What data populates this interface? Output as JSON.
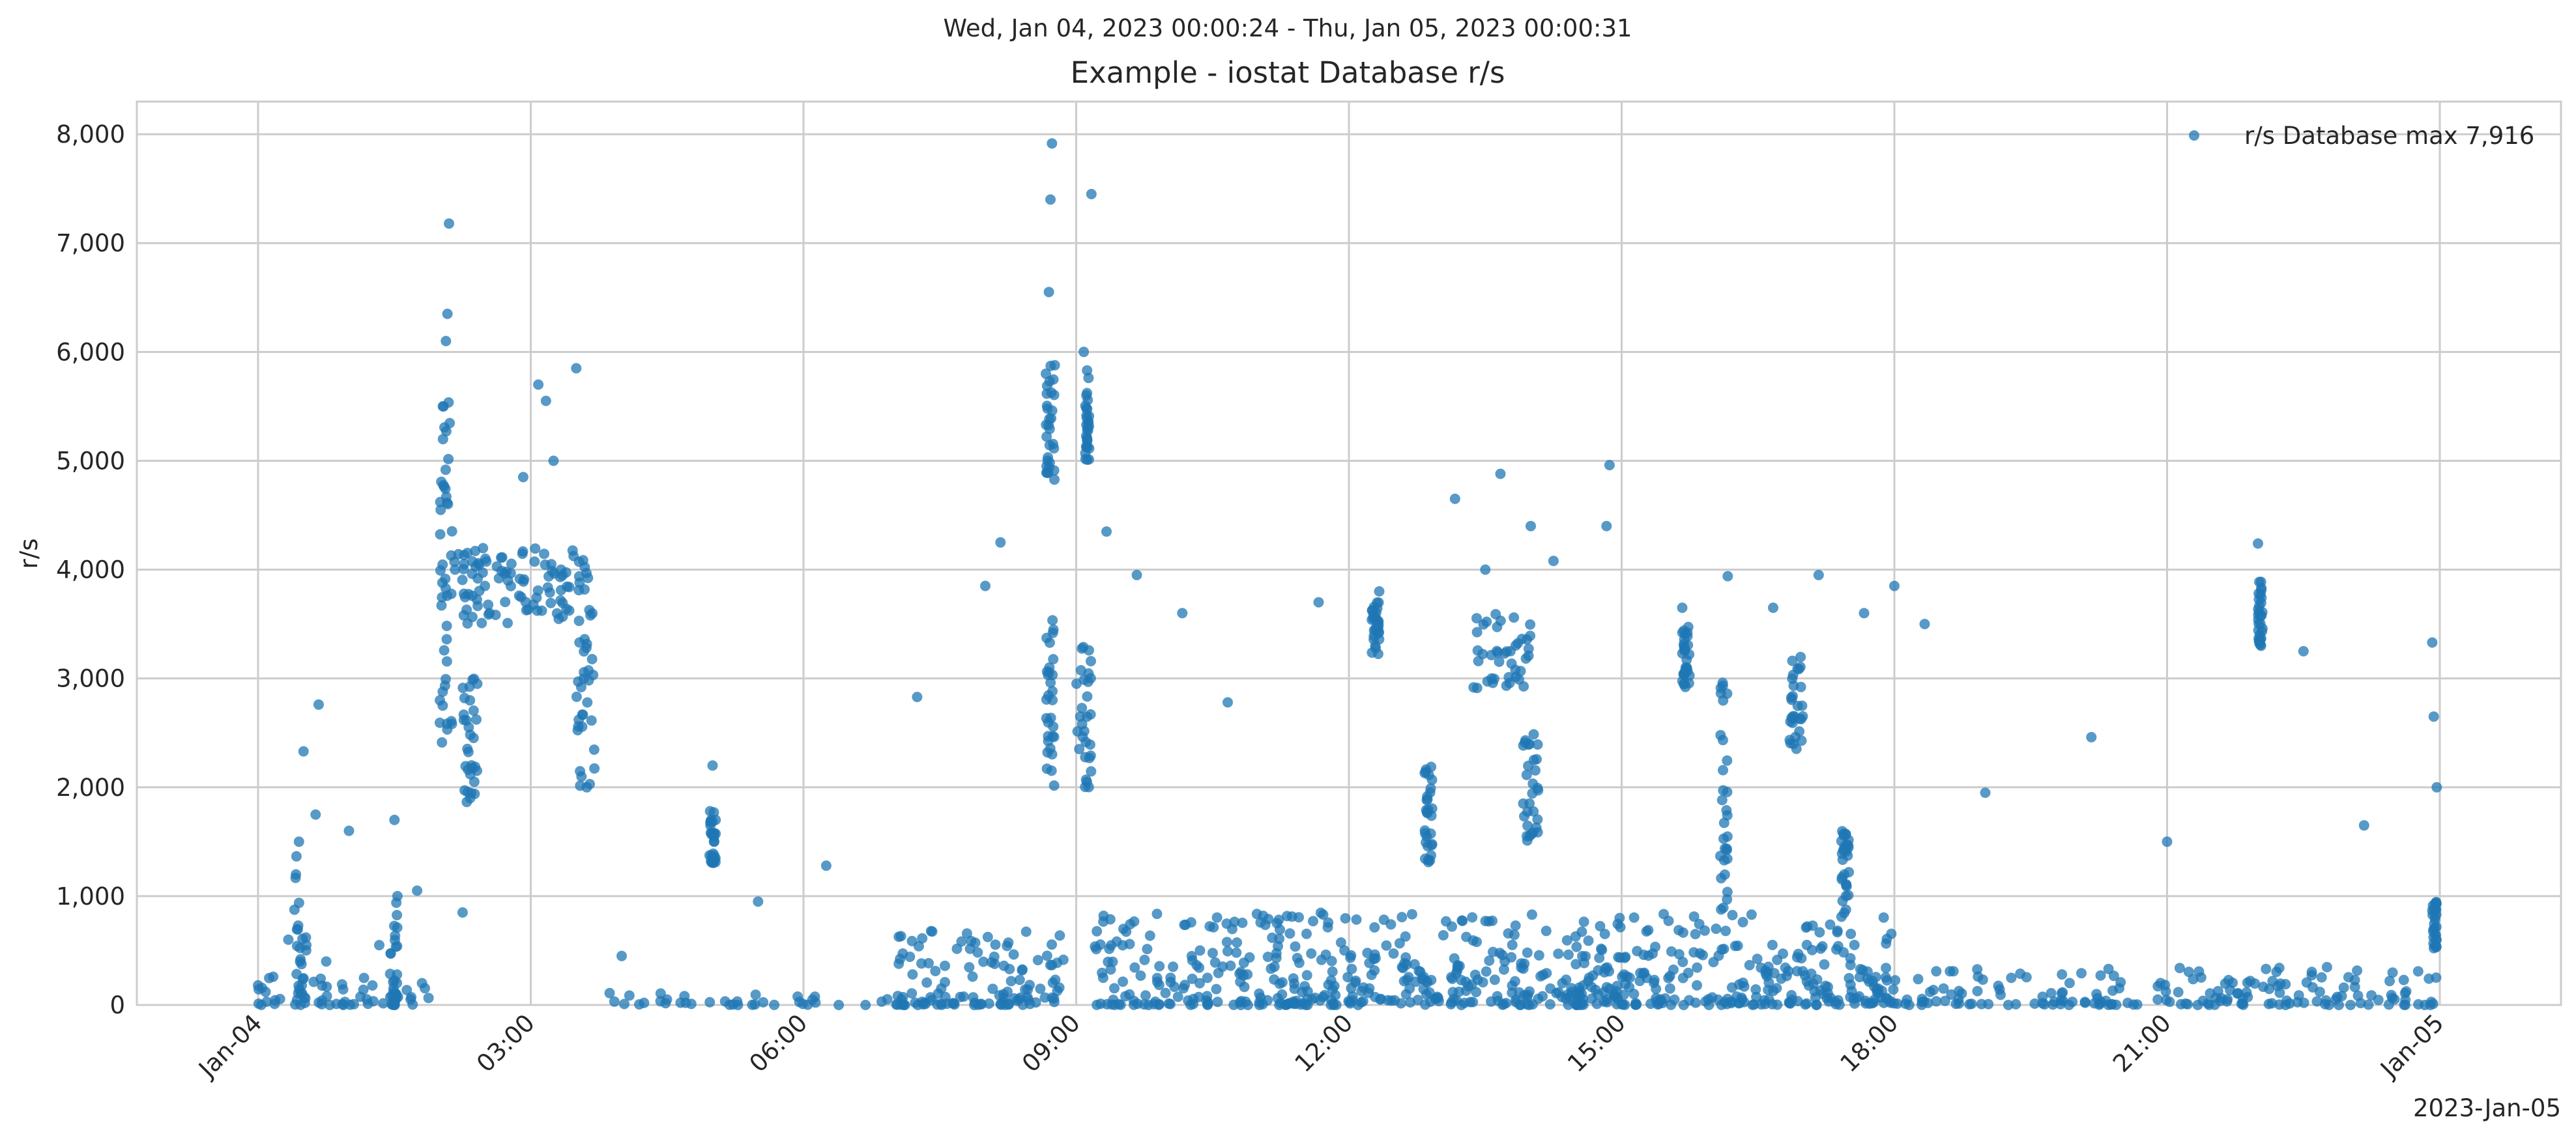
{
  "chart_data": {
    "type": "scatter",
    "suptitle": "Wed, Jan 04, 2023 00:00:24 - Thu, Jan 05, 2023 00:00:31",
    "title": "Example - iostat Database r/s",
    "xlabel": "",
    "ylabel": "r/s",
    "x_offset_label": "2023-Jan-05",
    "xlim": [
      "2023-01-03T22:40",
      "2023-01-05T01:20"
    ],
    "ylim": [
      0,
      8300
    ],
    "xticks": [
      {
        "value": "2023-01-04T00:00",
        "label": "Jan-04"
      },
      {
        "value": "2023-01-04T03:00",
        "label": "03:00"
      },
      {
        "value": "2023-01-04T06:00",
        "label": "06:00"
      },
      {
        "value": "2023-01-04T09:00",
        "label": "09:00"
      },
      {
        "value": "2023-01-04T12:00",
        "label": "12:00"
      },
      {
        "value": "2023-01-04T15:00",
        "label": "15:00"
      },
      {
        "value": "2023-01-04T18:00",
        "label": "18:00"
      },
      {
        "value": "2023-01-04T21:00",
        "label": "21:00"
      },
      {
        "value": "2023-01-05T00:00",
        "label": "Jan-05"
      }
    ],
    "yticks": [
      {
        "value": 0,
        "label": "0"
      },
      {
        "value": 1000,
        "label": "1,000"
      },
      {
        "value": 2000,
        "label": "2,000"
      },
      {
        "value": 3000,
        "label": "3,000"
      },
      {
        "value": 4000,
        "label": "4,000"
      },
      {
        "value": 5000,
        "label": "5,000"
      },
      {
        "value": 6000,
        "label": "6,000"
      },
      {
        "value": 7000,
        "label": "7,000"
      },
      {
        "value": 8000,
        "label": "8,000"
      }
    ],
    "grid": true,
    "legend_position": "top-right",
    "series": [
      {
        "name": "r/s Database max 7,916",
        "color": "#1f77b4",
        "marker": "circle",
        "max": 7916,
        "points": [
          [
            "2023-01-04T00:00",
            180
          ],
          [
            "2023-01-04T00:05",
            120
          ],
          [
            "2023-01-04T00:10",
            260
          ],
          [
            "2023-01-04T00:20",
            600
          ],
          [
            "2023-01-04T00:25",
            1200
          ],
          [
            "2023-01-04T00:27",
            1500
          ],
          [
            "2023-01-04T00:30",
            2330
          ],
          [
            "2023-01-04T00:38",
            1750
          ],
          [
            "2023-01-04T00:40",
            2760
          ],
          [
            "2023-01-04T00:45",
            400
          ],
          [
            "2023-01-04T01:00",
            1600
          ],
          [
            "2023-01-04T01:20",
            550
          ],
          [
            "2023-01-04T01:30",
            1700
          ],
          [
            "2023-01-04T01:32",
            1000
          ],
          [
            "2023-01-04T01:45",
            1050
          ],
          [
            "2023-01-04T02:00",
            2800
          ],
          [
            "2023-01-04T02:02",
            5500
          ],
          [
            "2023-01-04T02:04",
            6100
          ],
          [
            "2023-01-04T02:05",
            6350
          ],
          [
            "2023-01-04T02:06",
            7180
          ],
          [
            "2023-01-04T02:10",
            4000
          ],
          [
            "2023-01-04T02:15",
            850
          ],
          [
            "2023-01-04T02:20",
            1900
          ],
          [
            "2023-01-04T02:30",
            4100
          ],
          [
            "2023-01-04T02:45",
            3900
          ],
          [
            "2023-01-04T02:55",
            4850
          ],
          [
            "2023-01-04T03:05",
            5700
          ],
          [
            "2023-01-04T03:10",
            5550
          ],
          [
            "2023-01-04T03:15",
            5000
          ],
          [
            "2023-01-04T03:20",
            4000
          ],
          [
            "2023-01-04T03:30",
            5850
          ],
          [
            "2023-01-04T03:35",
            3000
          ],
          [
            "2023-01-04T03:37",
            2000
          ],
          [
            "2023-01-04T04:00",
            450
          ],
          [
            "2023-01-04T05:00",
            2200
          ],
          [
            "2023-01-04T05:02",
            1700
          ],
          [
            "2023-01-04T05:30",
            950
          ],
          [
            "2023-01-04T06:15",
            1280
          ],
          [
            "2023-01-04T07:15",
            2830
          ],
          [
            "2023-01-04T08:00",
            3850
          ],
          [
            "2023-01-04T08:10",
            4250
          ],
          [
            "2023-01-04T08:40",
            5800
          ],
          [
            "2023-01-04T08:42",
            6550
          ],
          [
            "2023-01-04T08:43",
            7400
          ],
          [
            "2023-01-04T08:44",
            7916
          ],
          [
            "2023-01-04T09:10",
            7450
          ],
          [
            "2023-01-04T09:05",
            6000
          ],
          [
            "2023-01-04T09:20",
            4350
          ],
          [
            "2023-01-04T09:40",
            3950
          ],
          [
            "2023-01-04T10:10",
            3600
          ],
          [
            "2023-01-04T10:40",
            2780
          ],
          [
            "2023-01-04T11:40",
            3700
          ],
          [
            "2023-01-04T12:20",
            3800
          ],
          [
            "2023-01-04T13:10",
            4650
          ],
          [
            "2023-01-04T13:30",
            4000
          ],
          [
            "2023-01-04T13:40",
            4880
          ],
          [
            "2023-01-04T14:00",
            4400
          ],
          [
            "2023-01-04T14:15",
            4080
          ],
          [
            "2023-01-04T14:50",
            4400
          ],
          [
            "2023-01-04T14:52",
            4960
          ],
          [
            "2023-01-04T15:40",
            3650
          ],
          [
            "2023-01-04T16:10",
            3940
          ],
          [
            "2023-01-04T16:40",
            3650
          ],
          [
            "2023-01-04T17:10",
            3950
          ],
          [
            "2023-01-04T17:40",
            3600
          ],
          [
            "2023-01-04T18:00",
            3850
          ],
          [
            "2023-01-04T18:20",
            3500
          ],
          [
            "2023-01-04T19:00",
            1950
          ],
          [
            "2023-01-04T20:10",
            2460
          ],
          [
            "2023-01-04T21:00",
            1500
          ],
          [
            "2023-01-04T22:00",
            4240
          ],
          [
            "2023-01-04T22:02",
            3300
          ],
          [
            "2023-01-04T22:30",
            3250
          ],
          [
            "2023-01-04T23:10",
            1650
          ],
          [
            "2023-01-04T23:55",
            3330
          ],
          [
            "2023-01-04T23:56",
            2650
          ],
          [
            "2023-01-04T23:58",
            2000
          ]
        ],
        "dense_bands": [
          {
            "from": "2023-01-04T00:00",
            "to": "2023-01-04T02:00",
            "low": 0,
            "high": 250
          },
          {
            "from": "2023-01-04T00:24",
            "to": "2023-01-04T00:32",
            "low": 0,
            "high": 1450
          },
          {
            "from": "2023-01-04T01:27",
            "to": "2023-01-04T01:33",
            "low": 0,
            "high": 1000
          },
          {
            "from": "2023-01-04T02:00",
            "to": "2023-01-04T02:08",
            "low": 2300,
            "high": 5700
          },
          {
            "from": "2023-01-04T02:05",
            "to": "2023-01-04T03:40",
            "low": 3500,
            "high": 4200
          },
          {
            "from": "2023-01-04T02:15",
            "to": "2023-01-04T02:25",
            "low": 1850,
            "high": 3000
          },
          {
            "from": "2023-01-04T03:30",
            "to": "2023-01-04T03:42",
            "low": 2000,
            "high": 3600
          },
          {
            "from": "2023-01-04T03:42",
            "to": "2023-01-04T07:00",
            "low": 0,
            "high": 120
          },
          {
            "from": "2023-01-04T04:58",
            "to": "2023-01-04T05:02",
            "low": 1300,
            "high": 1850
          },
          {
            "from": "2023-01-04T07:00",
            "to": "2023-01-04T08:55",
            "low": 0,
            "high": 700
          },
          {
            "from": "2023-01-04T08:40",
            "to": "2023-01-04T08:46",
            "low": 4800,
            "high": 5900
          },
          {
            "from": "2023-01-04T08:40",
            "to": "2023-01-04T08:46",
            "low": 2000,
            "high": 3600
          },
          {
            "from": "2023-01-04T09:00",
            "to": "2023-01-04T09:10",
            "low": 2000,
            "high": 3300
          },
          {
            "from": "2023-01-04T09:06",
            "to": "2023-01-04T09:08",
            "low": 5000,
            "high": 5900
          },
          {
            "from": "2023-01-04T09:12",
            "to": "2023-01-04T18:00",
            "low": 0,
            "high": 850
          },
          {
            "from": "2023-01-04T12:15",
            "to": "2023-01-04T12:20",
            "low": 3200,
            "high": 3700
          },
          {
            "from": "2023-01-04T12:50",
            "to": "2023-01-04T12:55",
            "low": 1300,
            "high": 2200
          },
          {
            "from": "2023-01-04T13:20",
            "to": "2023-01-04T14:00",
            "low": 2900,
            "high": 3600
          },
          {
            "from": "2023-01-04T13:55",
            "to": "2023-01-04T14:05",
            "low": 1500,
            "high": 2500
          },
          {
            "from": "2023-01-04T15:40",
            "to": "2023-01-04T15:45",
            "low": 2900,
            "high": 3500
          },
          {
            "from": "2023-01-04T16:05",
            "to": "2023-01-04T16:10",
            "low": 800,
            "high": 3000
          },
          {
            "from": "2023-01-04T16:50",
            "to": "2023-01-04T17:00",
            "low": 2300,
            "high": 3200
          },
          {
            "from": "2023-01-04T17:25",
            "to": "2023-01-04T17:30",
            "low": 800,
            "high": 1600
          },
          {
            "from": "2023-01-04T18:00",
            "to": "2023-01-05T00:00",
            "low": 0,
            "high": 350
          },
          {
            "from": "2023-01-04T22:00",
            "to": "2023-01-04T22:03",
            "low": 3300,
            "high": 3900
          },
          {
            "from": "2023-01-04T23:55",
            "to": "2023-01-04T23:58",
            "low": 500,
            "high": 1000
          }
        ]
      }
    ]
  }
}
